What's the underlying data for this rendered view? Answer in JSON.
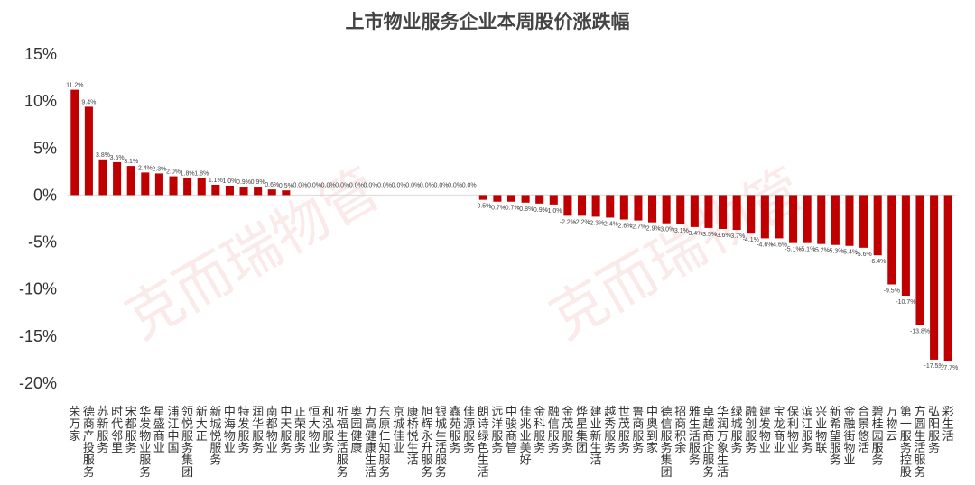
{
  "chart_data": {
    "type": "bar",
    "title": "上市物业服务企业本周股价涨跌幅",
    "xlabel": "",
    "ylabel": "",
    "ylim": [
      -20,
      15
    ],
    "yticks": [
      15,
      10,
      5,
      0,
      -5,
      -10,
      -15,
      -20
    ],
    "ytick_labels": [
      "15%",
      "10%",
      "5%",
      "0%",
      "-5%",
      "-10%",
      "-15%",
      "-20%"
    ],
    "grid": false,
    "legend": "none",
    "bar_color": "#c00000",
    "watermark": "克而瑞物管",
    "categories": [
      "荣万家",
      "德商产投服务",
      "苏新服务",
      "时代邻里",
      "宋都服务",
      "华发物业服务",
      "星盛商业",
      "浦江中国",
      "领悦服务集团",
      "新大正",
      "新城悦服务",
      "中海物业",
      "特发服务",
      "润华服务",
      "南都物业",
      "中天服务",
      "正荣服务",
      "恒大物业",
      "和泓服务",
      "祈福生活服务",
      "奥园健康",
      "力高健康生活",
      "东原仁知服务",
      "京城佳业",
      "康桥悦生活",
      "旭辉永升服务",
      "银城生活服务",
      "鑫苑服务",
      "佳源服务",
      "朗诗绿色生活",
      "远洋服务",
      "中骏商管",
      "佳兆业美好",
      "金科服务",
      "融信服务",
      "金茂服务",
      "烨星集团",
      "建业新生活",
      "越秀服务",
      "世茂服务",
      "鲁商服务",
      "中奥到家",
      "德信服务集团",
      "招商积余",
      "雅生活服务",
      "卓越商企服务",
      "华润万象生活",
      "绿城服务",
      "融创服务",
      "建发物业",
      "宝龙商业",
      "保利物业",
      "滨江服务",
      "兴业物联",
      "新希望服务",
      "金融街物业",
      "合景悠活",
      "碧桂园服务",
      "万物云",
      "第一服务控股",
      "方圆生活服务",
      "弘阳服务",
      "彩生活"
    ],
    "values": [
      11.2,
      9.4,
      3.8,
      3.5,
      3.1,
      2.4,
      2.3,
      2.0,
      1.8,
      1.8,
      1.1,
      1.0,
      0.9,
      0.9,
      0.6,
      0.5,
      0.0,
      0.0,
      0.0,
      0.0,
      0.0,
      0.0,
      0.0,
      0.0,
      0.0,
      0.0,
      0.0,
      0.0,
      0.0,
      -0.5,
      -0.7,
      -0.7,
      -0.8,
      -0.9,
      -1.0,
      -2.2,
      -2.2,
      -2.3,
      -2.4,
      -2.6,
      -2.7,
      -2.9,
      -3.0,
      -3.1,
      -3.4,
      -3.5,
      -3.6,
      -3.7,
      -4.1,
      -4.6,
      -4.6,
      -5.1,
      -5.1,
      -5.2,
      -5.3,
      -5.4,
      -5.6,
      -6.4,
      -9.5,
      -10.7,
      -13.8,
      -17.5,
      -17.7
    ],
    "data_labels": [
      "11.2%",
      "9.4%",
      "3.8%",
      "3.5%",
      "3.1%",
      "2.4%",
      "2.3%",
      "2.0%",
      "1.8%",
      "1.8%",
      "1.1%",
      "1.0%",
      "0.9%",
      "0.9%",
      "0.6%",
      "0.5%",
      "0.0%",
      "0.0%",
      "0.0%",
      "0.0%",
      "0.0%",
      "0.0%",
      "0.0%",
      "0.0%",
      "0.0%",
      "0.0%",
      "0.0%",
      "0.0%",
      "0.0%",
      "-0.5%",
      "-0.7%",
      "-0.7%",
      "-0.8%",
      "-0.9%",
      "-1.0%",
      "-2.2%",
      "-2.2%",
      "-2.3%",
      "-2.4%",
      "-2.6%",
      "-2.7%",
      "-2.9%",
      "-3.0%",
      "-3.1%",
      "-3.4%",
      "-3.5%",
      "-3.6%",
      "-3.7%",
      "-4.1%",
      "-4.6%",
      "-4.6%",
      "-5.1%",
      "-5.1%",
      "-5.2%",
      "-5.3%",
      "-5.4%",
      "-5.6%",
      "-6.4%",
      "-9.5%",
      "-10.7%",
      "-13.8%",
      "-17.5%",
      "-17.7%"
    ]
  }
}
